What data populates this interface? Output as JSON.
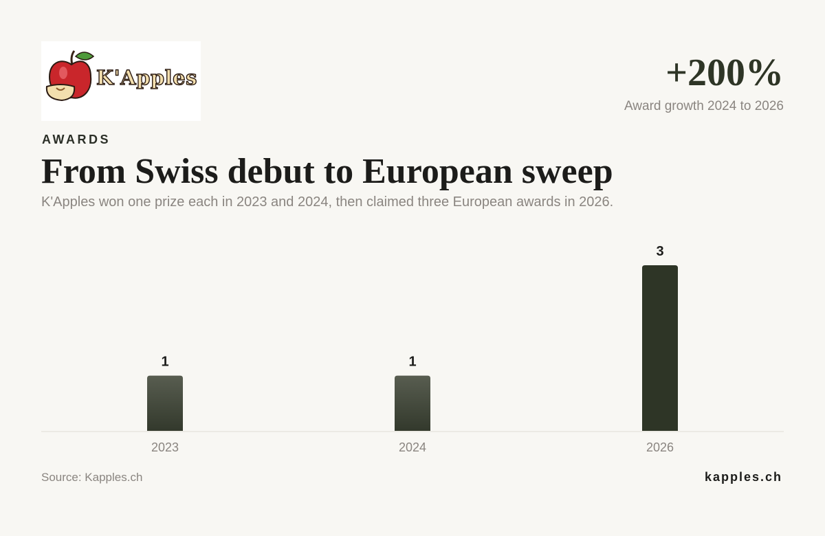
{
  "brand": {
    "logo_text": "K'Apples",
    "site": "kapples.ch"
  },
  "header": {
    "eyebrow": "AWARDS",
    "title": "From Swiss debut to European sweep",
    "subtitle": "K'Apples won one prize each in 2023 and 2024, then claimed three European awards in 2026."
  },
  "stat": {
    "value": "+200%",
    "label": "Award growth 2024 to 2026"
  },
  "footer": {
    "source": "Source: Kapples.ch"
  },
  "colors": {
    "bar": "#4b5143",
    "bar_highlight": "#2e3526",
    "baseline": "#e0ddd6"
  },
  "chart_data": {
    "type": "bar",
    "categories": [
      "2023",
      "2024",
      "2026"
    ],
    "values": [
      1,
      1,
      3
    ],
    "data_labels": [
      "1",
      "1",
      "3"
    ],
    "highlight": "2026",
    "ylim": [
      0,
      3
    ],
    "grid": false,
    "legend": "none"
  }
}
